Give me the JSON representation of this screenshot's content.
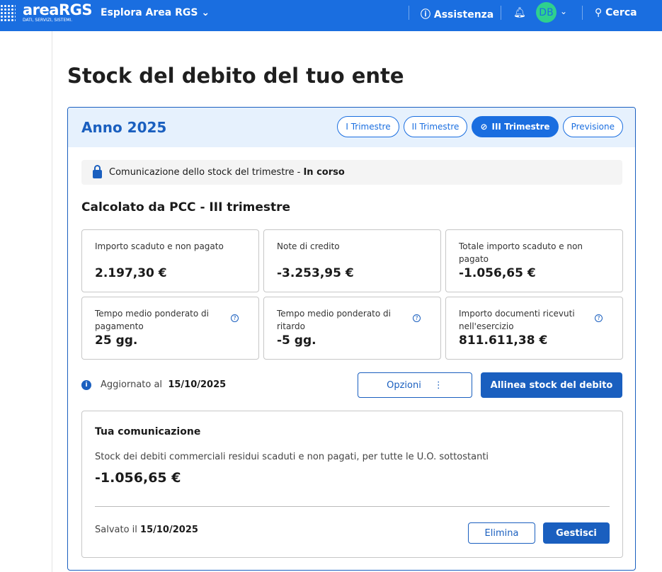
{
  "header": {
    "logo_main": "areaRGS",
    "logo_tagline": "DATI, SERVIZI, SISTEMI.",
    "explore": "Esplora Area RGS",
    "assist": "Assistenza",
    "avatar": "DB",
    "search": "Cerca",
    "colors": {
      "bar": "#1a6ee0",
      "avatar": "#2fd08e"
    }
  },
  "page": {
    "title": "Stock del debito del tuo ente"
  },
  "card": {
    "year": "Anno 2025",
    "tabs": [
      {
        "label": "I Trimestre"
      },
      {
        "label": "II Trimestre"
      },
      {
        "label": "III Trimestre",
        "selected": true
      },
      {
        "label": "Previsione"
      }
    ],
    "status": {
      "text": "Comunicazione dello stock del trimestre - ",
      "state": "In corso"
    },
    "subtitle": "Calcolato da PCC - III trimestre",
    "metrics": [
      {
        "label": "Importo scaduto e non pagato",
        "value": "2.197,30 €"
      },
      {
        "label": "Note di credito",
        "value": "-3.253,95 €"
      },
      {
        "label": "Totale importo scaduto e non pagato",
        "value": "-1.056,65 €"
      },
      {
        "label": "Tempo medio ponderato di pagamento",
        "value": "25 gg."
      },
      {
        "label": "Tempo medio ponderato di ritardo",
        "value": "-5 gg."
      },
      {
        "label": "Importo documenti ricevuti nell'esercizio",
        "value": "811.611,38 €"
      }
    ],
    "updated_label": "Aggiornato al",
    "updated_date": "15/10/2025",
    "options": "Opzioni",
    "align": "Allinea stock del debito"
  },
  "tua": {
    "title": "Tua comunicazione",
    "desc": "Stock dei debiti commerciali residui scaduti e non pagati, per tutte le U.O. sottostanti",
    "value": "-1.056,65 €",
    "saved_label": "Salvato il",
    "saved_date": "15/10/2025",
    "delete": "Elimina",
    "manage": "Gestisci"
  }
}
